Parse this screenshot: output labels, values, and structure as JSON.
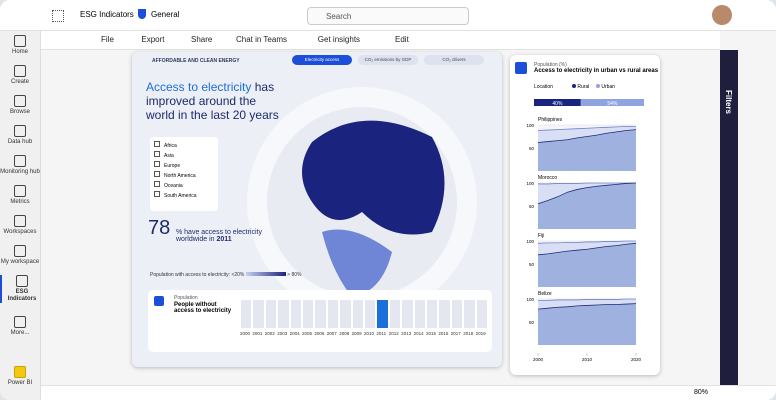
{
  "topbar": {
    "app": "ESG Indicators",
    "workspace": "General",
    "search": "Search"
  },
  "nav": [
    "Home",
    "Create",
    "Browse",
    "Data hub",
    "Monitoring hub",
    "Metrics",
    "Workspaces",
    "My workspace",
    "ESG Indicators",
    "More...",
    "Power BI"
  ],
  "toolbar": [
    "File",
    "Export",
    "Share",
    "Chat in Teams",
    "Get insights",
    "Edit"
  ],
  "report": {
    "section": "AFFORDABLE AND CLEAN ENERGY",
    "tabs": [
      "Electricity access",
      "CO₂ emissions by GDP",
      "CO₂ drivers"
    ],
    "headline_highlight": "Access to electricity",
    "headline_rest": "has improved around the world in the last 20 years",
    "regions": [
      "Africa",
      "Asia",
      "Europe",
      "North America",
      "Oceania",
      "South America"
    ],
    "stat_value": "78",
    "stat_text": "% have access to electricity worldwide in",
    "stat_year": "2011",
    "legend_label": "Population with access to electricity:",
    "legend_low": "<20%",
    "legend_high": "> 80%"
  },
  "timeline": {
    "kicker": "Population",
    "title": "People without access to electricity",
    "years": [
      "2000",
      "2001",
      "2002",
      "2003",
      "2004",
      "2005",
      "2006",
      "2007",
      "2008",
      "2009",
      "2010",
      "2011",
      "2012",
      "2013",
      "2014",
      "2015",
      "2016",
      "2017",
      "2018",
      "2019"
    ],
    "selected": 11
  },
  "side_panel": {
    "kicker": "Population (%)",
    "title": "Access to electricity in urban vs rural areas",
    "location_label": "Location",
    "legend": [
      "Rural",
      "Urban"
    ],
    "bar": {
      "values": [
        40,
        54
      ],
      "value_labels": [
        "40%",
        "54%"
      ]
    },
    "chart_data": {
      "type": "area",
      "x": [
        2000,
        2002,
        2004,
        2006,
        2008,
        2010,
        2012,
        2014,
        2016,
        2018,
        2020
      ],
      "xlim": [
        2000,
        2020
      ],
      "xticks": [
        2000,
        2010,
        2020
      ],
      "ylim": [
        0,
        100
      ],
      "yticks": [
        50,
        100
      ],
      "panels": [
        {
          "title": "Philippines",
          "urban": [
            88,
            89,
            90,
            91,
            92,
            93,
            94,
            95,
            96,
            97,
            97
          ],
          "rural": [
            62,
            64,
            66,
            68,
            72,
            75,
            78,
            82,
            85,
            88,
            90
          ]
        },
        {
          "title": "Morocco",
          "urban": [
            98,
            98,
            99,
            99,
            99,
            100,
            100,
            100,
            100,
            100,
            100
          ],
          "rural": [
            55,
            62,
            70,
            80,
            86,
            90,
            93,
            95,
            97,
            99,
            100
          ]
        },
        {
          "title": "Fiji",
          "urban": [
            95,
            96,
            96,
            97,
            97,
            98,
            98,
            99,
            99,
            100,
            100
          ],
          "rural": [
            70,
            72,
            75,
            78,
            80,
            82,
            85,
            88,
            90,
            93,
            95
          ]
        },
        {
          "title": "Belize",
          "urban": [
            97,
            97,
            98,
            98,
            98,
            99,
            99,
            99,
            99,
            100,
            100
          ],
          "rural": [
            78,
            80,
            82,
            83,
            85,
            86,
            87,
            88,
            88,
            89,
            90
          ]
        }
      ]
    }
  },
  "filters": "Filters",
  "zoom": "80%"
}
